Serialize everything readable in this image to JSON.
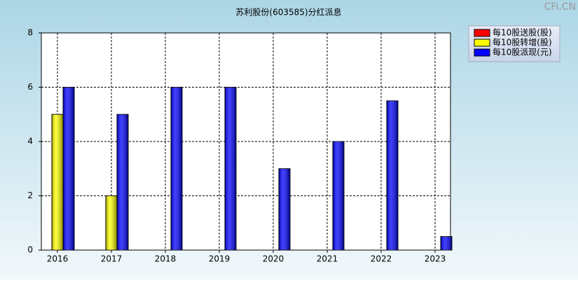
{
  "chart_data": {
    "type": "bar",
    "title": "苏利股份(603585)分红派息",
    "watermark": "CFi.CN",
    "categories": [
      "2016",
      "2017",
      "2018",
      "2019",
      "2020",
      "2021",
      "2022",
      "2023"
    ],
    "series": [
      {
        "name": "每10股送股(股)",
        "color": "#ff0000",
        "values": [
          0,
          0,
          0,
          0,
          0,
          0,
          0,
          0
        ]
      },
      {
        "name": "每10股转增(股)",
        "color": "#ffff00",
        "values": [
          5,
          2,
          0,
          0,
          0,
          0,
          0,
          0
        ]
      },
      {
        "name": "每10股派现(元)",
        "color": "#0000ff",
        "values": [
          6,
          5,
          6,
          6,
          3,
          4,
          5.5,
          0.5
        ]
      }
    ],
    "ylim": [
      0,
      8
    ],
    "yticks": [
      0,
      2,
      4,
      6,
      8
    ],
    "grid": true
  }
}
